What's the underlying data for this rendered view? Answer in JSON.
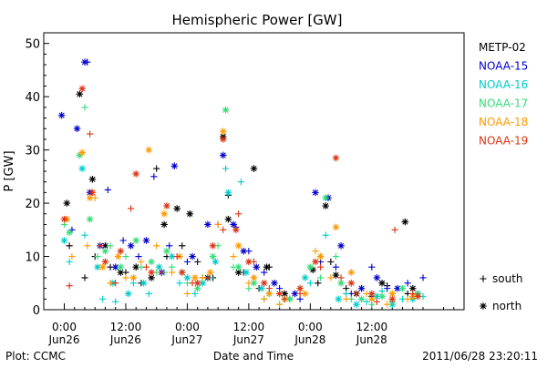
{
  "chart_data": {
    "type": "scatter",
    "title": "Hemispheric Power [GW]",
    "xlabel": "Date and Time",
    "ylabel": "P [GW]",
    "xlim": [
      -4,
      78
    ],
    "ylim": [
      0,
      52
    ],
    "y_ticks": [
      0,
      10,
      20,
      30,
      40,
      50
    ],
    "x_ticks": [
      {
        "hour": 0,
        "top": "0:00",
        "bottom": "Jun26"
      },
      {
        "hour": 12,
        "top": "12:00",
        "bottom": "Jun26"
      },
      {
        "hour": 24,
        "top": "0:00",
        "bottom": "Jun27"
      },
      {
        "hour": 36,
        "top": "12:00",
        "bottom": "Jun27"
      },
      {
        "hour": 48,
        "top": "0:00",
        "bottom": "Jun28"
      },
      {
        "hour": 60,
        "top": "12:00",
        "bottom": "Jun28"
      }
    ],
    "x_minor_step_hours": 2,
    "grid": false,
    "legend_position": "right",
    "marker_legend": [
      {
        "marker": "+",
        "label": "south"
      },
      {
        "marker": "*",
        "label": "north"
      }
    ],
    "series": [
      {
        "name": "METP-02",
        "color": "#000000",
        "north": [
          [
            0.5,
            20
          ],
          [
            3,
            40.5
          ],
          [
            5.5,
            24.5
          ],
          [
            8,
            12
          ],
          [
            11,
            7
          ],
          [
            14,
            8
          ],
          [
            17,
            6
          ],
          [
            19.5,
            16
          ],
          [
            22,
            19
          ],
          [
            24.5,
            18
          ],
          [
            28,
            6
          ],
          [
            31,
            32.5
          ],
          [
            32,
            17
          ],
          [
            34,
            7
          ],
          [
            37,
            26.5
          ],
          [
            39.5,
            8
          ],
          [
            43,
            3
          ],
          [
            48.5,
            7.5
          ],
          [
            51,
            19.5
          ],
          [
            53,
            6.5
          ],
          [
            57,
            3
          ],
          [
            62,
            5
          ],
          [
            66.5,
            16.5
          ],
          [
            68,
            4
          ]
        ],
        "south": [
          [
            1,
            12
          ],
          [
            4,
            6
          ],
          [
            6,
            10
          ],
          [
            9,
            8
          ],
          [
            12,
            7
          ],
          [
            15,
            5
          ],
          [
            18,
            26.5
          ],
          [
            20,
            10
          ],
          [
            23,
            12
          ],
          [
            26,
            9
          ],
          [
            29,
            6
          ],
          [
            32,
            21.5
          ],
          [
            35,
            7
          ],
          [
            38,
            4
          ],
          [
            40,
            8
          ],
          [
            44,
            2
          ],
          [
            49.5,
            5
          ],
          [
            52,
            9
          ],
          [
            55,
            4
          ],
          [
            60,
            2.5
          ],
          [
            63,
            4.5
          ],
          [
            67,
            3
          ]
        ]
      },
      {
        "name": "NOAA-15",
        "color": "#0000cc",
        "north": [
          [
            -0.5,
            36.5
          ],
          [
            2.5,
            34
          ],
          [
            4,
            46.5
          ],
          [
            5,
            22
          ],
          [
            7,
            12
          ],
          [
            10,
            8
          ],
          [
            13,
            12
          ],
          [
            16,
            13
          ],
          [
            19,
            7
          ],
          [
            21.5,
            27
          ],
          [
            25,
            10
          ],
          [
            28,
            16
          ],
          [
            31,
            29
          ],
          [
            33,
            16
          ],
          [
            35,
            11
          ],
          [
            37.5,
            8
          ],
          [
            41,
            5
          ],
          [
            45,
            3
          ],
          [
            49,
            22
          ],
          [
            51.5,
            21
          ],
          [
            54,
            12
          ],
          [
            58,
            4
          ],
          [
            61,
            6
          ],
          [
            65,
            4
          ],
          [
            69,
            3
          ]
        ],
        "south": [
          [
            1.5,
            15
          ],
          [
            4.5,
            46.5
          ],
          [
            8.5,
            22.5
          ],
          [
            11.5,
            13
          ],
          [
            14.5,
            10
          ],
          [
            17.5,
            25
          ],
          [
            20.5,
            12
          ],
          [
            24,
            9
          ],
          [
            27,
            6
          ],
          [
            30,
            16
          ],
          [
            33.5,
            15.5
          ],
          [
            36,
            11
          ],
          [
            39,
            7
          ],
          [
            42,
            4
          ],
          [
            46,
            2
          ],
          [
            50,
            9
          ],
          [
            53,
            8
          ],
          [
            56,
            3
          ],
          [
            60,
            8
          ],
          [
            63,
            4
          ],
          [
            67,
            5
          ],
          [
            70,
            6
          ]
        ]
      },
      {
        "name": "NOAA-16",
        "color": "#00cccc",
        "north": [
          [
            0,
            13
          ],
          [
            3.5,
            26.5
          ],
          [
            6.5,
            8
          ],
          [
            9.5,
            5
          ],
          [
            12.5,
            3
          ],
          [
            15.5,
            5
          ],
          [
            18.5,
            8
          ],
          [
            21,
            10
          ],
          [
            24,
            6
          ],
          [
            27,
            5
          ],
          [
            29.5,
            9
          ],
          [
            32,
            22
          ],
          [
            35.5,
            7
          ],
          [
            38.5,
            4
          ],
          [
            43,
            2
          ],
          [
            47,
            6
          ],
          [
            50,
            10
          ],
          [
            53.5,
            2
          ],
          [
            57,
            1
          ],
          [
            61,
            2.5
          ],
          [
            64,
            1
          ],
          [
            68,
            2
          ]
        ],
        "south": [
          [
            1,
            9
          ],
          [
            4,
            14
          ],
          [
            7.5,
            2
          ],
          [
            10,
            1.5
          ],
          [
            13.5,
            5
          ],
          [
            16.5,
            3
          ],
          [
            19.5,
            7
          ],
          [
            22.5,
            5
          ],
          [
            25.5,
            3
          ],
          [
            28.5,
            6
          ],
          [
            31.5,
            26.5
          ],
          [
            34.5,
            24
          ],
          [
            37,
            6
          ],
          [
            40,
            3
          ],
          [
            44,
            2
          ],
          [
            48,
            5
          ],
          [
            51,
            14
          ],
          [
            55,
            3
          ],
          [
            59,
            1.5
          ],
          [
            62,
            3.5
          ],
          [
            66,
            2
          ],
          [
            70,
            2.5
          ]
        ]
      },
      {
        "name": "NOAA-17",
        "color": "#33dd77",
        "north": [
          [
            1,
            14.5
          ],
          [
            3,
            29
          ],
          [
            5,
            17
          ],
          [
            8,
            11
          ],
          [
            11,
            8
          ],
          [
            14,
            13
          ],
          [
            17,
            9
          ],
          [
            20,
            11
          ],
          [
            23,
            7
          ],
          [
            26,
            4
          ],
          [
            29,
            10
          ],
          [
            31.5,
            37.5
          ],
          [
            34,
            8
          ],
          [
            37,
            5
          ],
          [
            40,
            3
          ],
          [
            44,
            2
          ],
          [
            48,
            8
          ],
          [
            51,
            21
          ],
          [
            54,
            5
          ],
          [
            58,
            2
          ],
          [
            62,
            2.5
          ],
          [
            66,
            4
          ],
          [
            69,
            3
          ]
        ],
        "south": [
          [
            0,
            16
          ],
          [
            4,
            38
          ],
          [
            6.5,
            10
          ],
          [
            9,
            12
          ],
          [
            12,
            10
          ],
          [
            15,
            8
          ],
          [
            18,
            7
          ],
          [
            21,
            8
          ],
          [
            24,
            5
          ],
          [
            27,
            6
          ],
          [
            30,
            12
          ],
          [
            33,
            8
          ],
          [
            36,
            4
          ],
          [
            39,
            2
          ],
          [
            42,
            1
          ],
          [
            46,
            3
          ],
          [
            50,
            6
          ],
          [
            53,
            10
          ],
          [
            56,
            2
          ],
          [
            60,
            1
          ],
          [
            64,
            1.5
          ],
          [
            68,
            3
          ]
        ]
      },
      {
        "name": "NOAA-18",
        "color": "#ff9900",
        "north": [
          [
            0.5,
            17
          ],
          [
            3.5,
            29.5
          ],
          [
            5,
            21
          ],
          [
            7.5,
            8
          ],
          [
            10.5,
            10
          ],
          [
            13.5,
            6
          ],
          [
            16.5,
            30
          ],
          [
            19.5,
            18
          ],
          [
            22.5,
            10
          ],
          [
            25.5,
            6
          ],
          [
            28.5,
            7
          ],
          [
            31,
            33.5
          ],
          [
            34,
            12
          ],
          [
            37,
            6
          ],
          [
            40,
            3
          ],
          [
            43,
            2
          ],
          [
            47,
            3
          ],
          [
            50,
            10
          ],
          [
            53,
            15.5
          ],
          [
            56,
            7
          ],
          [
            60,
            2
          ],
          [
            64,
            3
          ],
          [
            68,
            2.5
          ]
        ],
        "south": [
          [
            1.5,
            10
          ],
          [
            4.5,
            12
          ],
          [
            6,
            21
          ],
          [
            9,
            5
          ],
          [
            12,
            6
          ],
          [
            15,
            9
          ],
          [
            18,
            12
          ],
          [
            21,
            7
          ],
          [
            24,
            3
          ],
          [
            27,
            6
          ],
          [
            30,
            16
          ],
          [
            33,
            10
          ],
          [
            36,
            5
          ],
          [
            39,
            2
          ],
          [
            42,
            1
          ],
          [
            46,
            4
          ],
          [
            49,
            11
          ],
          [
            52,
            6
          ],
          [
            55,
            2
          ],
          [
            59,
            3
          ],
          [
            63,
            1
          ],
          [
            67,
            2
          ]
        ]
      },
      {
        "name": "NOAA-19",
        "color": "#dd3311",
        "north": [
          [
            0,
            17
          ],
          [
            3.5,
            41.5
          ],
          [
            5.5,
            22
          ],
          [
            8,
            9
          ],
          [
            11,
            11
          ],
          [
            14,
            25.5
          ],
          [
            17,
            7
          ],
          [
            20,
            19.5
          ],
          [
            23,
            7
          ],
          [
            26,
            5
          ],
          [
            29,
            12
          ],
          [
            31,
            32
          ],
          [
            33.5,
            15
          ],
          [
            36,
            9
          ],
          [
            39,
            5
          ],
          [
            42,
            3
          ],
          [
            46,
            4
          ],
          [
            49,
            9
          ],
          [
            53,
            28.5
          ],
          [
            56,
            5
          ],
          [
            60,
            3
          ],
          [
            64,
            2
          ],
          [
            69,
            2.5
          ]
        ],
        "south": [
          [
            1,
            4.5
          ],
          [
            5,
            33
          ],
          [
            7,
            12
          ],
          [
            10,
            5
          ],
          [
            13,
            19
          ],
          [
            16,
            8
          ],
          [
            19,
            7
          ],
          [
            22,
            10
          ],
          [
            25,
            5
          ],
          [
            28,
            6
          ],
          [
            31,
            15
          ],
          [
            34,
            18
          ],
          [
            37,
            9
          ],
          [
            40,
            4
          ],
          [
            43,
            2
          ],
          [
            46,
            3
          ],
          [
            50,
            8
          ],
          [
            54,
            6
          ],
          [
            57,
            3
          ],
          [
            61,
            1.5
          ],
          [
            64.5,
            15
          ],
          [
            68,
            3
          ]
        ]
      }
    ]
  },
  "footer": {
    "plot_credit": "Plot: CCMC",
    "timestamp": "2011/06/28 23:20:11"
  }
}
